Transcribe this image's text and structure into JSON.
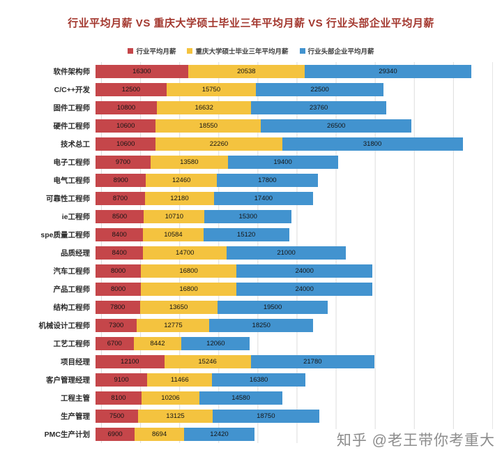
{
  "watermark": {
    "text": "知乎 @老王带你考重大"
  },
  "chart_data": {
    "type": "bar",
    "orientation": "horizontal",
    "stacked": true,
    "title": "行业平均月薪 VS 重庆大学硕士毕业三年平均月薪 VS 行业头部企业平均月薪",
    "legend_position": "top",
    "grid": true,
    "data_labels": true,
    "xlim": [
      0,
      70000
    ],
    "categories": [
      "软件架构师",
      "C/C++开发",
      "固件工程师",
      "硬件工程师",
      "技术总工",
      "电子工程师",
      "电气工程师",
      "可靠性工程师",
      "ie工程师",
      "spe质量工程师",
      "品质经理",
      "汽车工程师",
      "产品工程师",
      "结构工程师",
      "机械设计工程师",
      "工艺工程师",
      "项目经理",
      "客户管理经理",
      "工程主管",
      "生产管理",
      "PMC生产计划"
    ],
    "series": [
      {
        "name": "行业平均月薪",
        "color": "#c5464a",
        "values": [
          16300,
          12500,
          10800,
          10600,
          10600,
          9700,
          8900,
          8700,
          8500,
          8400,
          8400,
          8000,
          8000,
          7800,
          7300,
          6700,
          12100,
          9100,
          8100,
          7500,
          6900
        ]
      },
      {
        "name": "重庆大学硕士毕业三年平均月薪",
        "color": "#f4c33f",
        "values": [
          20538,
          15750,
          16632,
          18550,
          22260,
          13580,
          12460,
          12180,
          10710,
          10584,
          14700,
          16800,
          16800,
          13650,
          12775,
          8442,
          15246,
          11466,
          10206,
          13125,
          8694
        ]
      },
      {
        "name": "行业头部企业平均月薪",
        "color": "#4293cf",
        "values": [
          29340,
          22500,
          23760,
          26500,
          31800,
          19400,
          17800,
          17400,
          15300,
          15120,
          21000,
          24000,
          24000,
          19500,
          18250,
          12060,
          21780,
          16380,
          14580,
          18750,
          12420
        ]
      }
    ]
  }
}
